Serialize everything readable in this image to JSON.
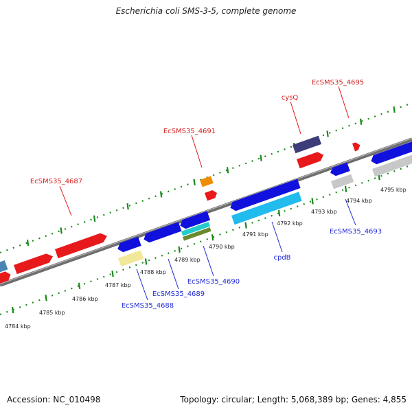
{
  "title": "Escherichia coli SMS-3-5, complete genome",
  "accession": "Accession: NC_010498",
  "topology": "Topology: circular; Length: 5,068,389 bp; Genes: 4,855",
  "colors": {
    "backbone": "#808080",
    "tick": "#1a8a1a",
    "label_red": "#d42020",
    "label_blue": "#1f2bd6"
  },
  "scale_labels": [
    "4784 kbp",
    "4785 kbp",
    "4786 kbp",
    "4787 kbp",
    "4788 kbp",
    "4789 kbp",
    "4790 kbp",
    "4791 kbp",
    "4792 kbp",
    "4793 kbp",
    "4794 kbp",
    "4795 kbp"
  ],
  "labels_top": [
    {
      "text": "EcSMS35_4687"
    },
    {
      "text": "EcSMS35_4691"
    },
    {
      "text": "cysQ"
    },
    {
      "text": "EcSMS35_4695"
    }
  ],
  "labels_bottom": [
    {
      "text": "EcSMS35_4688"
    },
    {
      "text": "EcSMS35_4689"
    },
    {
      "text": "EcSMS35_4690"
    },
    {
      "text": "cpdB"
    },
    {
      "text": "EcSMS35_4693"
    }
  ]
}
